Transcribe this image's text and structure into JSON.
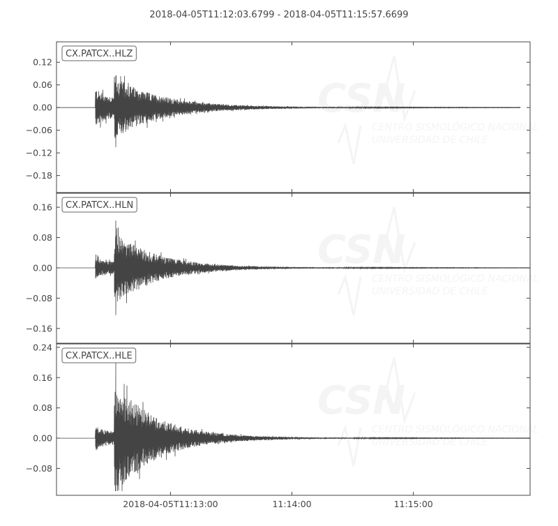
{
  "chart_data": {
    "type": "line",
    "title": "2018-04-05T11:12:03.6799  -  2018-04-05T11:15:57.6699",
    "start_time": "2018-04-05T11:12:03.6799",
    "end_time": "2018-04-05T11:15:57.6699",
    "x_ticks": [
      {
        "time": "11:13:00",
        "label": "2018-04-05T11:13:00"
      },
      {
        "time": "11:14:00",
        "label": "11:14:00"
      },
      {
        "time": "11:15:00",
        "label": "11:15:00"
      }
    ],
    "line_color": "#444444",
    "grid": false,
    "watermark": {
      "logo": "CSN",
      "line1": "CENTRO SISMOLÓGICO NACIONAL",
      "line2": "UNIVERSIDAD DE CHILE"
    },
    "series": [
      {
        "name": "CX.PATCX..HLZ",
        "ylim": [
          -0.225,
          0.174
        ],
        "yticks": [
          0.12,
          0.06,
          0.0,
          -0.06,
          -0.12,
          -0.18
        ],
        "onset": "11:12:22.8",
        "s_arrival": "11:12:32.2",
        "max": 0.085,
        "min": -0.105,
        "p_amp": 0.055,
        "decay_s": 22
      },
      {
        "name": "CX.PATCX..HLN",
        "ylim": [
          -0.199,
          0.197
        ],
        "yticks": [
          0.16,
          0.08,
          0.0,
          -0.08,
          -0.16
        ],
        "onset": "11:12:22.8",
        "s_arrival": "11:12:32.2",
        "max": 0.125,
        "min": -0.125,
        "p_amp": 0.03,
        "decay_s": 20
      },
      {
        "name": "CX.PATCX..HLE",
        "ylim": [
          -0.151,
          0.249
        ],
        "yticks": [
          0.24,
          0.16,
          0.08,
          0.0,
          -0.08
        ],
        "onset": "11:12:22.8",
        "s_arrival": "11:12:32.2",
        "max": 0.2,
        "min": -0.14,
        "p_amp": 0.035,
        "decay_s": 20
      }
    ]
  }
}
